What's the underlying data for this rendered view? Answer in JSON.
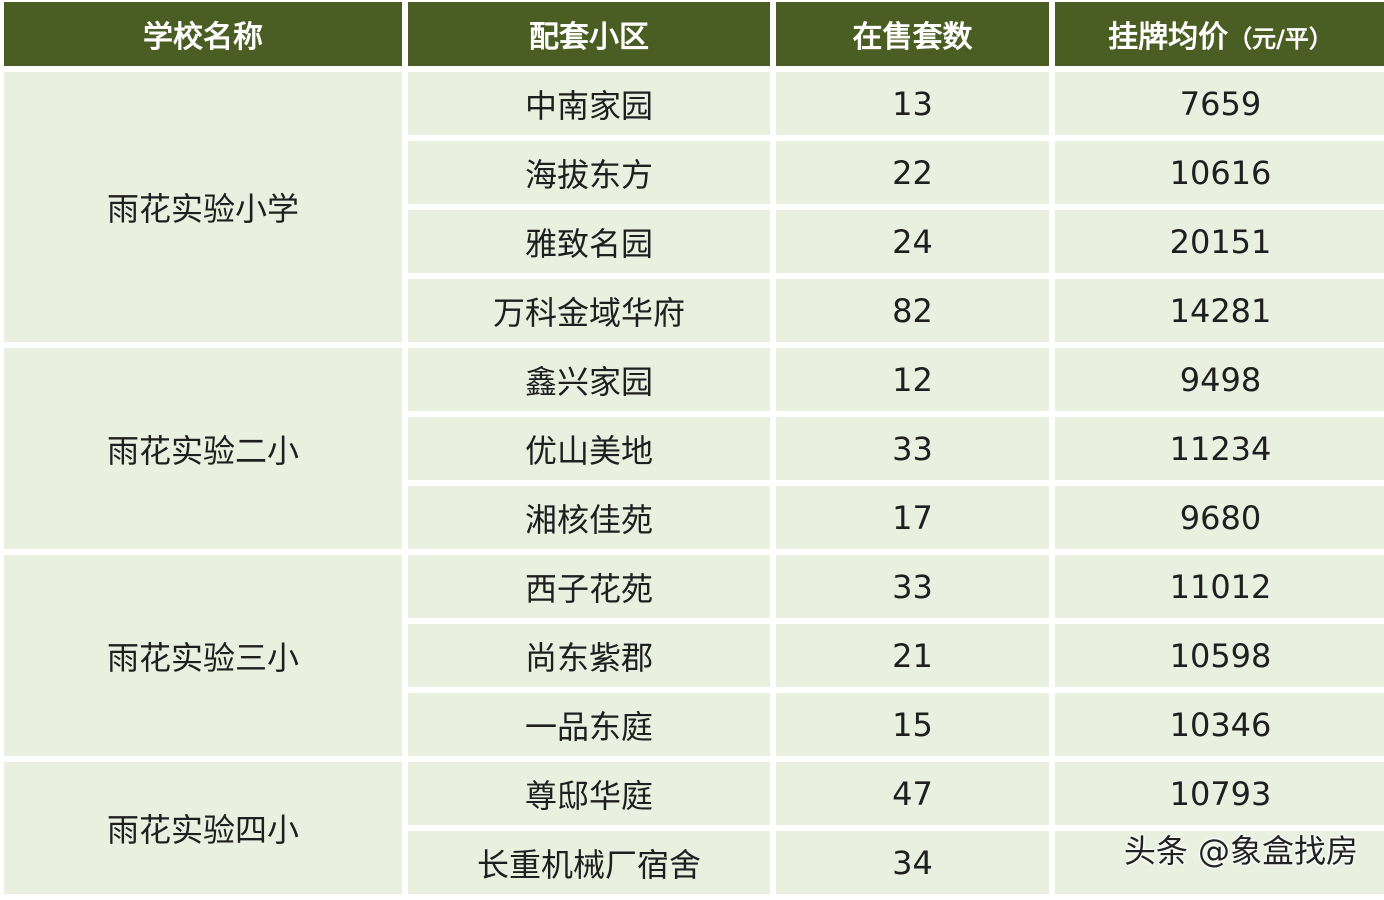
{
  "header": {
    "school": "学校名称",
    "community": "配套小区",
    "count": "在售套数",
    "price": "挂牌均价",
    "price_unit": "（元/平）"
  },
  "groups": [
    {
      "school": "雨花实验小学",
      "rows": [
        {
          "community": "中南家园",
          "count": "13",
          "price": "7659"
        },
        {
          "community": "海拔东方",
          "count": "22",
          "price": "10616"
        },
        {
          "community": "雅致名园",
          "count": "24",
          "price": "20151"
        },
        {
          "community": "万科金域华府",
          "count": "82",
          "price": "14281"
        }
      ]
    },
    {
      "school": "雨花实验二小",
      "rows": [
        {
          "community": "鑫兴家园",
          "count": "12",
          "price": "9498"
        },
        {
          "community": "优山美地",
          "count": "33",
          "price": "11234"
        },
        {
          "community": "湘核佳苑",
          "count": "17",
          "price": "9680"
        }
      ]
    },
    {
      "school": "雨花实验三小",
      "rows": [
        {
          "community": "西子花苑",
          "count": "33",
          "price": "11012"
        },
        {
          "community": "尚东紫郡",
          "count": "21",
          "price": "10598"
        },
        {
          "community": "一品东庭",
          "count": "15",
          "price": "10346"
        }
      ]
    },
    {
      "school": "雨花实验四小",
      "rows": [
        {
          "community": "尊邸华庭",
          "count": "47",
          "price": "10793"
        },
        {
          "community": "长重机械厂宿舍",
          "count": "34",
          "price": ""
        }
      ]
    }
  ],
  "watermark": "头条 @象盒找房"
}
